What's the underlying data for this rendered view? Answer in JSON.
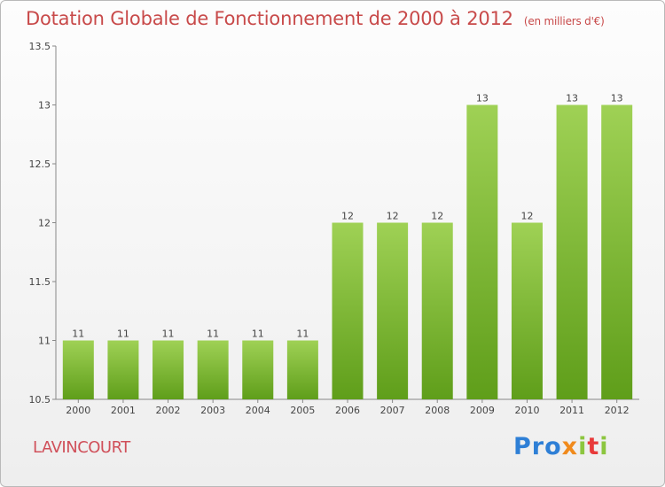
{
  "title": "Dotation Globale de Fonctionnement de 2000 à 2012",
  "unit_label": "(en milliers d'€)",
  "commune": "LAVINCOURT",
  "logo": {
    "p1": "Pro",
    "p2": "x",
    "p3": "i",
    "p4": "t",
    "p5": "i"
  },
  "colors": {
    "bar_top": "#9fd155",
    "bar_bottom": "#5f9e1a",
    "title": "#c84a4a"
  },
  "chart_data": {
    "type": "bar",
    "title": "Dotation Globale de Fonctionnement de 2000 à 2012",
    "subtitle": "(en milliers d'€)",
    "categories": [
      "2000",
      "2001",
      "2002",
      "2003",
      "2004",
      "2005",
      "2006",
      "2007",
      "2008",
      "2009",
      "2010",
      "2011",
      "2012"
    ],
    "values": [
      11,
      11,
      11,
      11,
      11,
      11,
      12,
      12,
      12,
      13,
      12,
      13,
      13
    ],
    "data_labels": [
      "11",
      "11",
      "11",
      "11",
      "11",
      "11",
      "12",
      "12",
      "12",
      "13",
      "12",
      "13",
      "13"
    ],
    "ylim": [
      10.5,
      13.5
    ],
    "yticks": [
      10.5,
      11,
      11.5,
      12,
      12.5,
      13,
      13.5
    ],
    "ytick_labels": [
      "10.5",
      "11",
      "11.5",
      "12",
      "12.5",
      "13",
      "13.5"
    ],
    "grid": false,
    "xlabel": "",
    "ylabel": ""
  }
}
